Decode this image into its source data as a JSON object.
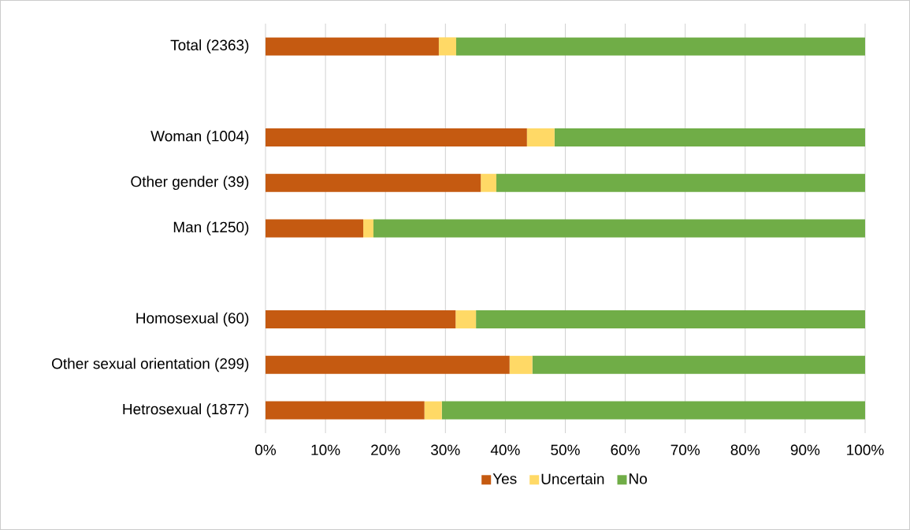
{
  "chart_data": {
    "type": "bar",
    "orientation": "horizontal",
    "stacked": true,
    "categories": [
      "Total (2363)",
      null,
      "Woman (1004)",
      "Other gender (39)",
      "Man (1250)",
      null,
      "Homosexual (60)",
      "Other sexual orientation (299)",
      "Hetrosexual (1877)"
    ],
    "series": [
      {
        "name": "Yes",
        "color": "#c55a11",
        "values": [
          28.9,
          null,
          43.6,
          35.9,
          16.3,
          null,
          31.7,
          40.7,
          26.5
        ]
      },
      {
        "name": "Uncertain",
        "color": "#ffd966",
        "values": [
          2.9,
          null,
          4.6,
          2.6,
          1.7,
          null,
          3.4,
          3.8,
          2.9
        ]
      },
      {
        "name": "No",
        "color": "#70ad47",
        "values": [
          68.2,
          null,
          51.8,
          61.5,
          82.0,
          null,
          64.9,
          55.5,
          70.6
        ]
      }
    ],
    "xlim": [
      0,
      100
    ],
    "xticks": [
      {
        "value": 0,
        "label": "0%"
      },
      {
        "value": 10,
        "label": "10%"
      },
      {
        "value": 20,
        "label": "20%"
      },
      {
        "value": 30,
        "label": "30%"
      },
      {
        "value": 40,
        "label": "40%"
      },
      {
        "value": 50,
        "label": "50%"
      },
      {
        "value": 60,
        "label": "60%"
      },
      {
        "value": 70,
        "label": "70%"
      },
      {
        "value": 80,
        "label": "80%"
      },
      {
        "value": 90,
        "label": "90%"
      },
      {
        "value": 100,
        "label": "100%"
      }
    ],
    "grid": "x",
    "legend": "bottom"
  }
}
